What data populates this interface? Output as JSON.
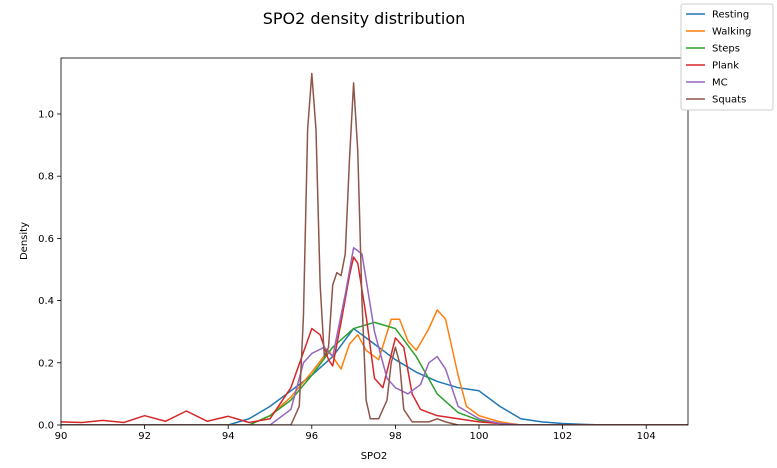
{
  "chart_data": {
    "type": "line",
    "title": "SPO2 density distribution",
    "xlabel": "SPO2",
    "ylabel": "Density",
    "xlim": [
      90,
      105
    ],
    "ylim": [
      0,
      1.18
    ],
    "xticks": [
      "90",
      "92",
      "94",
      "96",
      "98",
      "100",
      "102",
      "104"
    ],
    "yticks": [
      "0.0",
      "0.2",
      "0.4",
      "0.6",
      "0.8",
      "1.0"
    ],
    "grid": false,
    "legend_position": "top-right",
    "series": [
      {
        "name": "Resting",
        "color": "#1f77b4",
        "points": [
          [
            90,
            0
          ],
          [
            94,
            0
          ],
          [
            94.5,
            0.02
          ],
          [
            95,
            0.06
          ],
          [
            95.5,
            0.11
          ],
          [
            96,
            0.16
          ],
          [
            96.5,
            0.22
          ],
          [
            97,
            0.31
          ],
          [
            97.5,
            0.26
          ],
          [
            98,
            0.21
          ],
          [
            98.5,
            0.17
          ],
          [
            99,
            0.14
          ],
          [
            99.5,
            0.12
          ],
          [
            100,
            0.11
          ],
          [
            100.5,
            0.06
          ],
          [
            101,
            0.02
          ],
          [
            101.5,
            0.01
          ],
          [
            102,
            0.005
          ],
          [
            102.5,
            0.002
          ],
          [
            103,
            0
          ],
          [
            105,
            0
          ]
        ]
      },
      {
        "name": "Walking",
        "color": "#ff7f0e",
        "points": [
          [
            90,
            0
          ],
          [
            94.5,
            0
          ],
          [
            95,
            0.03
          ],
          [
            95.5,
            0.09
          ],
          [
            96,
            0.17
          ],
          [
            96.4,
            0.24
          ],
          [
            96.7,
            0.18
          ],
          [
            96.9,
            0.26
          ],
          [
            97.1,
            0.29
          ],
          [
            97.3,
            0.24
          ],
          [
            97.6,
            0.21
          ],
          [
            97.9,
            0.34
          ],
          [
            98.1,
            0.34
          ],
          [
            98.3,
            0.27
          ],
          [
            98.5,
            0.24
          ],
          [
            98.8,
            0.31
          ],
          [
            99,
            0.37
          ],
          [
            99.2,
            0.34
          ],
          [
            99.5,
            0.16
          ],
          [
            99.7,
            0.06
          ],
          [
            100,
            0.03
          ],
          [
            100.5,
            0.01
          ],
          [
            101,
            0
          ],
          [
            105,
            0
          ]
        ]
      },
      {
        "name": "Steps",
        "color": "#2ca02c",
        "points": [
          [
            90,
            0
          ],
          [
            94.5,
            0
          ],
          [
            95,
            0.03
          ],
          [
            95.5,
            0.08
          ],
          [
            96,
            0.16
          ],
          [
            96.5,
            0.25
          ],
          [
            97,
            0.31
          ],
          [
            97.5,
            0.33
          ],
          [
            98,
            0.31
          ],
          [
            98.5,
            0.22
          ],
          [
            99,
            0.1
          ],
          [
            99.5,
            0.04
          ],
          [
            100,
            0.015
          ],
          [
            100.5,
            0.005
          ],
          [
            101,
            0
          ],
          [
            101.5,
            0
          ],
          [
            105,
            0
          ]
        ]
      },
      {
        "name": "Plank",
        "color": "#d62728",
        "points": [
          [
            90,
            0.01
          ],
          [
            90.5,
            0.008
          ],
          [
            91,
            0.015
          ],
          [
            91.5,
            0.008
          ],
          [
            92,
            0.03
          ],
          [
            92.5,
            0.012
          ],
          [
            93,
            0.045
          ],
          [
            93.5,
            0.012
          ],
          [
            94,
            0.028
          ],
          [
            94.5,
            0.008
          ],
          [
            95,
            0.02
          ],
          [
            95.5,
            0.12
          ],
          [
            96,
            0.31
          ],
          [
            96.2,
            0.29
          ],
          [
            96.4,
            0.21
          ],
          [
            96.5,
            0.19
          ],
          [
            96.7,
            0.33
          ],
          [
            96.9,
            0.48
          ],
          [
            97,
            0.54
          ],
          [
            97.1,
            0.52
          ],
          [
            97.3,
            0.35
          ],
          [
            97.5,
            0.15
          ],
          [
            97.7,
            0.12
          ],
          [
            98,
            0.28
          ],
          [
            98.2,
            0.25
          ],
          [
            98.4,
            0.1
          ],
          [
            98.6,
            0.05
          ],
          [
            98.8,
            0.04
          ],
          [
            99,
            0.03
          ],
          [
            99.5,
            0.02
          ],
          [
            100,
            0.01
          ],
          [
            100.5,
            0.005
          ],
          [
            101,
            0
          ],
          [
            105,
            0
          ]
        ]
      },
      {
        "name": "MC",
        "color": "#9467bd",
        "points": [
          [
            90,
            0
          ],
          [
            95,
            0
          ],
          [
            95.5,
            0.05
          ],
          [
            95.8,
            0.2
          ],
          [
            96,
            0.23
          ],
          [
            96.3,
            0.25
          ],
          [
            96.5,
            0.22
          ],
          [
            96.8,
            0.42
          ],
          [
            97,
            0.57
          ],
          [
            97.2,
            0.55
          ],
          [
            97.5,
            0.3
          ],
          [
            97.8,
            0.15
          ],
          [
            98,
            0.12
          ],
          [
            98.3,
            0.1
          ],
          [
            98.6,
            0.13
          ],
          [
            98.8,
            0.2
          ],
          [
            99,
            0.22
          ],
          [
            99.2,
            0.18
          ],
          [
            99.5,
            0.06
          ],
          [
            100,
            0.02
          ],
          [
            100.5,
            0.005
          ],
          [
            101,
            0
          ],
          [
            105,
            0
          ]
        ]
      },
      {
        "name": "Squats",
        "color": "#8c564b",
        "points": [
          [
            90,
            0
          ],
          [
            95.5,
            0
          ],
          [
            95.7,
            0.06
          ],
          [
            95.8,
            0.35
          ],
          [
            95.9,
            0.95
          ],
          [
            96,
            1.13
          ],
          [
            96.1,
            0.95
          ],
          [
            96.2,
            0.45
          ],
          [
            96.3,
            0.22
          ],
          [
            96.4,
            0.25
          ],
          [
            96.5,
            0.45
          ],
          [
            96.6,
            0.49
          ],
          [
            96.7,
            0.48
          ],
          [
            96.8,
            0.55
          ],
          [
            96.9,
            0.85
          ],
          [
            97,
            1.1
          ],
          [
            97.1,
            0.88
          ],
          [
            97.2,
            0.4
          ],
          [
            97.3,
            0.08
          ],
          [
            97.4,
            0.02
          ],
          [
            97.6,
            0.02
          ],
          [
            97.8,
            0.08
          ],
          [
            97.9,
            0.2
          ],
          [
            98,
            0.25
          ],
          [
            98.1,
            0.2
          ],
          [
            98.2,
            0.05
          ],
          [
            98.4,
            0.01
          ],
          [
            98.8,
            0.01
          ],
          [
            99,
            0.02
          ],
          [
            99.2,
            0.01
          ],
          [
            99.5,
            0
          ],
          [
            105,
            0
          ]
        ]
      }
    ]
  }
}
